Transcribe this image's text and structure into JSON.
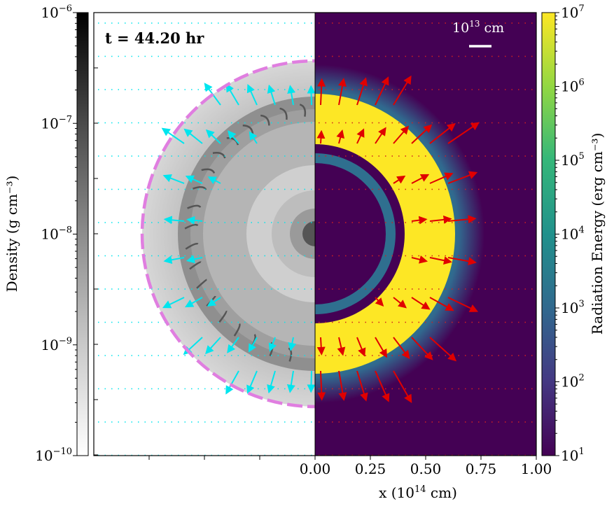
{
  "chart_data": {
    "type": "heatmap",
    "time_label": "t = 44.20 hr",
    "scale_bar_label": "10",
    "scale_bar_exp": "13",
    "scale_bar_unit": "cm",
    "xlabel": {
      "prefix": "x (10",
      "exp": "14",
      "suffix": " cm)"
    },
    "x_ticks": [
      "0.00",
      "0.25",
      "0.50",
      "0.75",
      "1.00"
    ],
    "x_tick_values": [
      0.0,
      0.25,
      0.5,
      0.75,
      1.0
    ],
    "x_range": [
      -1.0,
      1.0
    ],
    "left_panel": {
      "quantity": "density",
      "colormap": "greys",
      "colorbar_label": "Density (g cm⁻³)",
      "colorbar_ticks": [
        {
          "base": "10",
          "exp": "−6",
          "log": -6
        },
        {
          "base": "10",
          "exp": "−7",
          "log": -7
        },
        {
          "base": "10",
          "exp": "−8",
          "log": -8
        },
        {
          "base": "10",
          "exp": "−9",
          "log": -9
        },
        {
          "base": "10",
          "exp": "−10",
          "log": -10
        }
      ],
      "log_range": [
        -10,
        -6
      ],
      "vector_color": "#00e5ee",
      "dashed_circle_color": "#e07ee0"
    },
    "right_panel": {
      "quantity": "radiation energy",
      "colormap": "viridis",
      "colorbar_label": "Radiation Energy (erg cm⁻³)",
      "colorbar_ticks": [
        {
          "base": "10",
          "exp": "7",
          "log": 7
        },
        {
          "base": "10",
          "exp": "6",
          "log": 6
        },
        {
          "base": "10",
          "exp": "5",
          "log": 5
        },
        {
          "base": "10",
          "exp": "4",
          "log": 4
        },
        {
          "base": "10",
          "exp": "3",
          "log": 3
        },
        {
          "base": "10",
          "exp": "2",
          "log": 2
        },
        {
          "base": "10",
          "exp": "1",
          "log": 1
        }
      ],
      "log_range": [
        1,
        7
      ],
      "vector_color": "#e00000"
    }
  }
}
